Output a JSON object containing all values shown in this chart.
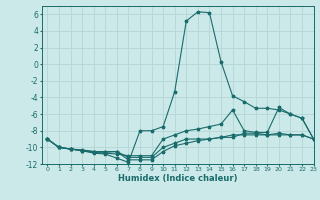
{
  "title": "",
  "xlabel": "Humidex (Indice chaleur)",
  "background_color": "#cce9e9",
  "grid_color": "#b8d8d8",
  "line_color": "#1a6b6b",
  "xlim": [
    -0.5,
    23
  ],
  "ylim": [
    -12,
    7
  ],
  "xticks": [
    0,
    1,
    2,
    3,
    4,
    5,
    6,
    7,
    8,
    9,
    10,
    11,
    12,
    13,
    14,
    15,
    16,
    17,
    18,
    19,
    20,
    21,
    22,
    23
  ],
  "yticks": [
    -12,
    -10,
    -8,
    -6,
    -4,
    -2,
    0,
    2,
    4,
    6
  ],
  "series": [
    {
      "x": [
        0,
        1,
        2,
        3,
        4,
        5,
        6,
        7,
        8,
        9,
        10,
        11,
        12,
        13,
        14,
        15,
        16,
        17,
        18,
        19,
        20,
        21,
        22,
        23
      ],
      "y": [
        -9,
        -10,
        -10.2,
        -10.4,
        -10.7,
        -10.8,
        -11.3,
        -11.8,
        -8,
        -8,
        -7.5,
        -3.3,
        5.2,
        6.3,
        6.2,
        0.3,
        -3.8,
        -4.5,
        -5.3,
        -5.3,
        -5.5,
        -6,
        -6.5,
        -9
      ]
    },
    {
      "x": [
        0,
        1,
        2,
        3,
        4,
        5,
        6,
        7,
        8,
        9,
        10,
        11,
        12,
        13,
        14,
        15,
        16,
        17,
        18,
        19,
        20,
        21,
        22,
        23
      ],
      "y": [
        -9,
        -10,
        -10.2,
        -10.3,
        -10.5,
        -10.5,
        -10.5,
        -11.2,
        -11.2,
        -11.2,
        -10,
        -9.5,
        -9,
        -9,
        -9,
        -8.8,
        -8.5,
        -8.5,
        -8.5,
        -8.5,
        -8.5,
        -8.5,
        -8.5,
        -9
      ]
    },
    {
      "x": [
        0,
        1,
        2,
        3,
        4,
        5,
        6,
        7,
        8,
        9,
        10,
        11,
        12,
        13,
        14,
        15,
        16,
        17,
        18,
        19,
        20,
        21,
        22,
        23
      ],
      "y": [
        -9,
        -10,
        -10.2,
        -10.4,
        -10.5,
        -10.6,
        -10.5,
        -11.5,
        -11.5,
        -11.5,
        -10.5,
        -9.8,
        -9.5,
        -9.2,
        -9,
        -8.8,
        -8.8,
        -8.3,
        -8.3,
        -8.5,
        -8.3,
        -8.5,
        -8.5,
        -9
      ]
    },
    {
      "x": [
        0,
        1,
        2,
        3,
        4,
        5,
        6,
        7,
        8,
        9,
        10,
        11,
        12,
        13,
        14,
        15,
        16,
        17,
        18,
        19,
        20,
        21,
        22,
        23
      ],
      "y": [
        -9,
        -10,
        -10.2,
        -10.4,
        -10.6,
        -10.7,
        -10.8,
        -11,
        -11,
        -11,
        -9,
        -8.5,
        -8,
        -7.8,
        -7.5,
        -7.2,
        -5.5,
        -8,
        -8.2,
        -8.2,
        -5.2,
        -6,
        -6.5,
        -9
      ]
    }
  ]
}
